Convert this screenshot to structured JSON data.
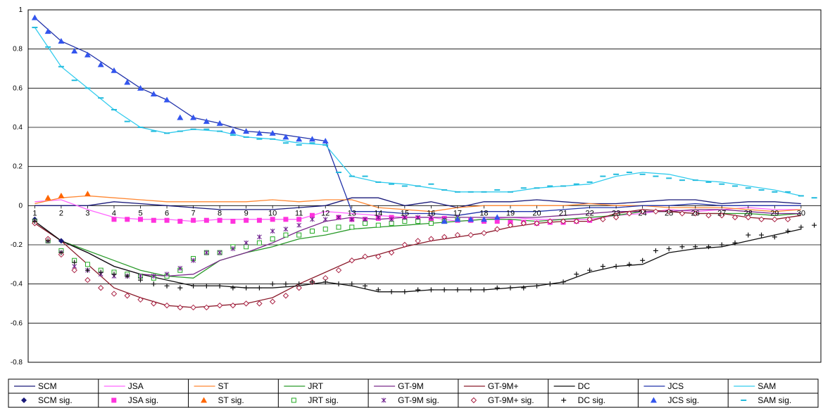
{
  "chart_data": {
    "type": "line",
    "title": "",
    "xlabel": "",
    "ylabel": "",
    "x_ticks": [
      "1",
      "2",
      "3",
      "4",
      "5",
      "6",
      "7",
      "8",
      "9",
      "10",
      "11",
      "12",
      "13",
      "14",
      "15",
      "16",
      "17",
      "18",
      "19",
      "20",
      "21",
      "22",
      "23",
      "24",
      "25",
      "26",
      "27",
      "28",
      "29",
      "30"
    ],
    "y_ticks": [
      "1",
      "0.8",
      "0.6",
      "0.4",
      "0.2",
      "0",
      "-0.2",
      "-0.4",
      "-0.6",
      "-0.8"
    ],
    "ylim": [
      -0.8,
      1.0
    ],
    "xlim": [
      0.75,
      30.75
    ],
    "grid": "horizontal",
    "legend_position": "bottom",
    "x_axis_at": 0,
    "series": [
      {
        "name": "SCM",
        "color": "#1a1a7a",
        "values": [
          0.0,
          0.0,
          0.0,
          0.02,
          0.01,
          0.0,
          -0.01,
          -0.02,
          -0.02,
          -0.02,
          -0.01,
          0.0,
          0.04,
          0.04,
          0.0,
          0.02,
          -0.01,
          0.02,
          0.02,
          0.03,
          0.02,
          0.01,
          0.01,
          0.02,
          0.03,
          0.03,
          0.01,
          0.02,
          0.02,
          0.01
        ]
      },
      {
        "name": "JSA",
        "color": "#ff66ff",
        "values": [
          0.02,
          0.03,
          -0.02,
          -0.06,
          -0.07,
          -0.07,
          -0.08,
          -0.07,
          -0.07,
          -0.07,
          -0.07,
          -0.03,
          -0.04,
          -0.05,
          -0.06,
          -0.06,
          -0.08,
          -0.07,
          -0.06,
          -0.07,
          -0.07,
          -0.07,
          -0.05,
          -0.04,
          -0.02,
          -0.03,
          -0.02,
          -0.01,
          -0.02,
          -0.02
        ]
      },
      {
        "name": "ST",
        "color": "#ff8833",
        "values": [
          0.01,
          0.04,
          0.05,
          0.04,
          0.03,
          0.02,
          0.02,
          0.02,
          0.02,
          0.03,
          0.02,
          0.03,
          0.03,
          -0.01,
          -0.02,
          -0.03,
          -0.01,
          0.0,
          0.0,
          0.0,
          0.0,
          0.01,
          0.0,
          0.0,
          -0.01,
          -0.01,
          -0.01,
          -0.02,
          -0.03,
          -0.02
        ]
      },
      {
        "name": "JRT",
        "color": "#2a9a2a",
        "values": [
          -0.08,
          -0.18,
          -0.23,
          -0.28,
          -0.33,
          -0.36,
          -0.37,
          -0.28,
          -0.24,
          -0.21,
          -0.17,
          -0.15,
          -0.12,
          -0.11,
          -0.1,
          -0.09,
          -0.08,
          -0.07,
          -0.07,
          -0.08,
          -0.07,
          -0.06,
          -0.05,
          -0.03,
          -0.03,
          -0.04,
          -0.04,
          -0.04,
          -0.05,
          -0.04
        ]
      },
      {
        "name": "GT-9M",
        "color": "#7a2a8a",
        "values": [
          -0.08,
          -0.18,
          -0.24,
          -0.31,
          -0.35,
          -0.36,
          -0.35,
          -0.28,
          -0.24,
          -0.19,
          -0.13,
          -0.08,
          -0.06,
          -0.07,
          -0.06,
          -0.06,
          -0.06,
          -0.06,
          -0.06,
          -0.06,
          -0.05,
          -0.04,
          -0.03,
          -0.03,
          -0.03,
          -0.02,
          -0.02,
          -0.03,
          -0.04,
          -0.04
        ]
      },
      {
        "name": "GT-9M+",
        "color": "#8a1a2a",
        "values": [
          -0.09,
          -0.18,
          -0.3,
          -0.42,
          -0.47,
          -0.51,
          -0.52,
          -0.51,
          -0.5,
          -0.47,
          -0.4,
          -0.34,
          -0.28,
          -0.25,
          -0.21,
          -0.18,
          -0.16,
          -0.14,
          -0.11,
          -0.09,
          -0.08,
          -0.08,
          -0.04,
          -0.02,
          -0.03,
          -0.04,
          -0.04,
          -0.06,
          -0.07,
          -0.05
        ]
      },
      {
        "name": "DC",
        "color": "#111111",
        "values": [
          -0.08,
          -0.18,
          -0.24,
          -0.31,
          -0.35,
          -0.38,
          -0.41,
          -0.41,
          -0.42,
          -0.42,
          -0.41,
          -0.39,
          -0.41,
          -0.44,
          -0.44,
          -0.43,
          -0.43,
          -0.43,
          -0.42,
          -0.41,
          -0.39,
          -0.34,
          -0.31,
          -0.3,
          -0.24,
          -0.22,
          -0.21,
          -0.18,
          -0.15,
          -0.12
        ]
      },
      {
        "name": "JCS",
        "color": "#2233aa",
        "values": [
          0.96,
          0.84,
          0.78,
          0.69,
          0.6,
          0.54,
          0.45,
          0.42,
          0.38,
          0.37,
          0.35,
          0.33,
          -0.03,
          -0.03,
          -0.04,
          -0.04,
          -0.05,
          -0.03,
          -0.03,
          -0.03,
          -0.02,
          -0.01,
          -0.01,
          0.0,
          0.0,
          0.01,
          0.0,
          0.0,
          0.0,
          0.0
        ]
      },
      {
        "name": "SAM",
        "color": "#33ccee",
        "values": [
          0.91,
          0.71,
          0.6,
          0.49,
          0.4,
          0.37,
          0.39,
          0.38,
          0.35,
          0.34,
          0.32,
          0.31,
          0.15,
          0.12,
          0.11,
          0.09,
          0.07,
          0.07,
          0.07,
          0.09,
          0.1,
          0.11,
          0.15,
          0.17,
          0.16,
          0.13,
          0.12,
          0.1,
          0.08,
          0.05
        ]
      }
    ],
    "markers": [
      {
        "name": "SCM sig.",
        "symbol": "diamond",
        "color": "#1a1a7a",
        "x": [
          1,
          2
        ],
        "values": [
          -0.07,
          -0.18
        ]
      },
      {
        "name": "JSA sig.",
        "symbol": "square",
        "color": "#ff33dd",
        "x": [
          4,
          4.5,
          5,
          5.5,
          6,
          6.5,
          7,
          7.5,
          8,
          8.5,
          9,
          9.5,
          10,
          10.5,
          11,
          11.5,
          12.5,
          13,
          13.5,
          14,
          14.5,
          15,
          15.5,
          16,
          16.5,
          17,
          17.5,
          18,
          18.5,
          19,
          19.5,
          20,
          20.5,
          21,
          21.5,
          22
        ],
        "values": [
          -0.07,
          -0.07,
          -0.07,
          -0.075,
          -0.075,
          -0.08,
          -0.075,
          -0.075,
          -0.075,
          -0.08,
          -0.075,
          -0.075,
          -0.07,
          -0.07,
          -0.07,
          -0.05,
          -0.06,
          -0.07,
          -0.07,
          -0.065,
          -0.06,
          -0.065,
          -0.065,
          -0.07,
          -0.065,
          -0.075,
          -0.075,
          -0.08,
          -0.08,
          -0.085,
          -0.085,
          -0.09,
          -0.085,
          -0.085,
          -0.08,
          -0.075
        ]
      },
      {
        "name": "ST sig.",
        "symbol": "triangle",
        "color": "#ff6600",
        "x": [
          1.5,
          2,
          3
        ],
        "values": [
          0.04,
          0.05,
          0.06
        ]
      },
      {
        "name": "JRT sig.",
        "symbol": "open-square",
        "color": "#22aa22",
        "x": [
          1,
          1.5,
          2,
          2.5,
          3,
          3.5,
          4,
          4.5,
          5,
          5.5,
          6,
          6.5,
          7,
          7.5,
          8,
          8.5,
          9,
          9.5,
          10,
          10.5,
          11,
          11.5,
          12,
          12.5,
          13,
          13.5,
          14,
          14.5,
          15,
          15.5,
          16,
          16.5,
          17
        ],
        "values": [
          -0.08,
          -0.18,
          -0.23,
          -0.28,
          -0.3,
          -0.33,
          -0.34,
          -0.35,
          -0.36,
          -0.37,
          -0.36,
          -0.33,
          -0.27,
          -0.24,
          -0.24,
          -0.21,
          -0.21,
          -0.19,
          -0.17,
          -0.15,
          -0.15,
          -0.13,
          -0.12,
          -0.11,
          -0.11,
          -0.09,
          -0.1,
          -0.09,
          -0.08,
          -0.08,
          -0.09,
          -0.08,
          -0.07
        ]
      },
      {
        "name": "GT-9M sig.",
        "symbol": "star",
        "color": "#6a1a8a",
        "x": [
          1,
          1.5,
          2,
          2.5,
          3,
          3.5,
          4,
          4.5,
          5,
          5.5,
          6,
          6.5,
          7,
          7.5,
          8,
          8.5,
          9,
          9.5,
          10,
          10.5,
          11,
          11.5,
          12,
          12.5,
          13,
          13.5,
          14,
          14.5,
          15,
          15.5,
          16,
          16.5,
          17
        ],
        "values": [
          -0.08,
          -0.18,
          -0.24,
          -0.31,
          -0.33,
          -0.35,
          -0.36,
          -0.36,
          -0.36,
          -0.36,
          -0.35,
          -0.32,
          -0.28,
          -0.24,
          -0.24,
          -0.22,
          -0.19,
          -0.16,
          -0.13,
          -0.12,
          -0.1,
          -0.07,
          -0.07,
          -0.06,
          -0.07,
          -0.07,
          -0.06,
          -0.07,
          -0.06,
          -0.06,
          -0.06,
          -0.07,
          -0.06
        ]
      },
      {
        "name": "GT-9M+ sig.",
        "symbol": "open-diamond",
        "color": "#aa2244",
        "x": [
          1,
          1.5,
          2,
          2.5,
          3,
          3.5,
          4,
          4.5,
          5,
          5.5,
          6,
          6.5,
          7,
          7.5,
          8,
          8.5,
          9,
          9.5,
          10,
          10.5,
          11,
          11.5,
          12,
          12.5,
          13,
          13.5,
          14,
          14.5,
          15,
          15.5,
          16,
          16.5,
          17,
          17.5,
          18,
          18.5,
          19,
          19.5,
          20,
          20.5,
          21,
          21.5,
          22,
          22.5,
          23,
          23.5,
          24,
          24.5,
          25,
          25.5,
          26,
          26.5,
          27,
          27.5,
          28,
          28.5,
          29,
          29.5
        ],
        "values": [
          -0.09,
          -0.17,
          -0.25,
          -0.33,
          -0.38,
          -0.42,
          -0.45,
          -0.46,
          -0.48,
          -0.5,
          -0.51,
          -0.52,
          -0.52,
          -0.52,
          -0.51,
          -0.51,
          -0.5,
          -0.5,
          -0.49,
          -0.46,
          -0.42,
          -0.39,
          -0.37,
          -0.33,
          -0.28,
          -0.26,
          -0.26,
          -0.24,
          -0.2,
          -0.18,
          -0.17,
          -0.16,
          -0.15,
          -0.15,
          -0.14,
          -0.12,
          -0.1,
          -0.09,
          -0.09,
          -0.08,
          -0.08,
          -0.08,
          -0.07,
          -0.07,
          -0.06,
          -0.04,
          -0.03,
          -0.03,
          -0.03,
          -0.04,
          -0.04,
          -0.05,
          -0.05,
          -0.06,
          -0.06,
          -0.07,
          -0.07,
          -0.07
        ]
      },
      {
        "name": "DC sig.",
        "symbol": "plus",
        "color": "#111111",
        "x": [
          1,
          1.5,
          2,
          2.5,
          3,
          3.5,
          4,
          4.5,
          5,
          5.5,
          6,
          6.5,
          7,
          7.5,
          8,
          8.5,
          9,
          9.5,
          10,
          10.5,
          11,
          11.5,
          12,
          12.5,
          13,
          13.5,
          14,
          14.5,
          15,
          15.5,
          16,
          16.5,
          17,
          17.5,
          18,
          18.5,
          19,
          19.5,
          20,
          20.5,
          21,
          21.5,
          22,
          22.5,
          23,
          23.5,
          24,
          24.5,
          25,
          25.5,
          26,
          26.5,
          27,
          27.5,
          28,
          28.5,
          29,
          29.5,
          30,
          30.5
        ],
        "values": [
          -0.08,
          -0.18,
          -0.24,
          -0.29,
          -0.33,
          -0.34,
          -0.35,
          -0.36,
          -0.38,
          -0.4,
          -0.41,
          -0.42,
          -0.41,
          -0.41,
          -0.41,
          -0.42,
          -0.42,
          -0.42,
          -0.4,
          -0.4,
          -0.4,
          -0.39,
          -0.39,
          -0.4,
          -0.4,
          -0.41,
          -0.43,
          -0.44,
          -0.44,
          -0.43,
          -0.43,
          -0.43,
          -0.43,
          -0.43,
          -0.43,
          -0.42,
          -0.42,
          -0.42,
          -0.41,
          -0.4,
          -0.39,
          -0.35,
          -0.33,
          -0.31,
          -0.31,
          -0.3,
          -0.28,
          -0.23,
          -0.22,
          -0.21,
          -0.21,
          -0.21,
          -0.2,
          -0.19,
          -0.15,
          -0.15,
          -0.16,
          -0.13,
          -0.11,
          -0.1
        ]
      },
      {
        "name": "JCS sig.",
        "symbol": "triangle",
        "color": "#3355ee",
        "x": [
          1,
          1.5,
          2,
          2.5,
          3,
          3.5,
          4,
          4.5,
          5,
          5.5,
          6,
          6.5,
          7,
          7.5,
          8,
          8.5,
          9,
          9.5,
          10,
          10.5,
          11,
          11.5,
          12,
          16.5,
          17,
          17.5,
          18,
          18.5
        ],
        "values": [
          0.96,
          0.89,
          0.84,
          0.79,
          0.77,
          0.72,
          0.69,
          0.63,
          0.6,
          0.57,
          0.54,
          0.45,
          0.45,
          0.43,
          0.42,
          0.38,
          0.38,
          0.37,
          0.37,
          0.35,
          0.34,
          0.34,
          0.33,
          -0.08,
          -0.07,
          -0.07,
          -0.07,
          -0.06
        ]
      },
      {
        "name": "SAM sig.",
        "symbol": "dash",
        "color": "#22bbdd",
        "x": [
          1,
          1.5,
          2,
          2.5,
          3,
          3.5,
          4,
          4.5,
          5,
          5.5,
          6,
          6.5,
          7,
          7.5,
          8,
          8.5,
          9,
          9.5,
          10,
          10.5,
          11,
          11.5,
          12,
          12.5,
          13,
          13.5,
          14,
          14.5,
          15,
          15.5,
          16,
          16.5,
          17,
          17.5,
          18,
          18.5,
          19,
          19.5,
          20,
          20.5,
          21,
          21.5,
          22,
          22.5,
          23,
          23.5,
          24,
          24.5,
          25,
          25.5,
          26,
          26.5,
          27,
          27.5,
          28,
          28.5,
          29,
          29.5,
          30,
          30.5
        ],
        "values": [
          0.91,
          0.81,
          0.71,
          0.64,
          0.6,
          0.55,
          0.49,
          0.43,
          0.4,
          0.38,
          0.37,
          0.38,
          0.39,
          0.39,
          0.38,
          0.36,
          0.35,
          0.34,
          0.34,
          0.32,
          0.31,
          0.32,
          0.31,
          0.17,
          0.15,
          0.15,
          0.12,
          0.11,
          0.1,
          0.1,
          0.11,
          0.08,
          0.07,
          0.07,
          0.07,
          0.08,
          0.07,
          0.09,
          0.09,
          0.1,
          0.1,
          0.11,
          0.12,
          0.15,
          0.16,
          0.17,
          0.16,
          0.15,
          0.14,
          0.13,
          0.13,
          0.12,
          0.11,
          0.1,
          0.09,
          0.08,
          0.07,
          0.07,
          0.05,
          0.04
        ]
      }
    ]
  }
}
